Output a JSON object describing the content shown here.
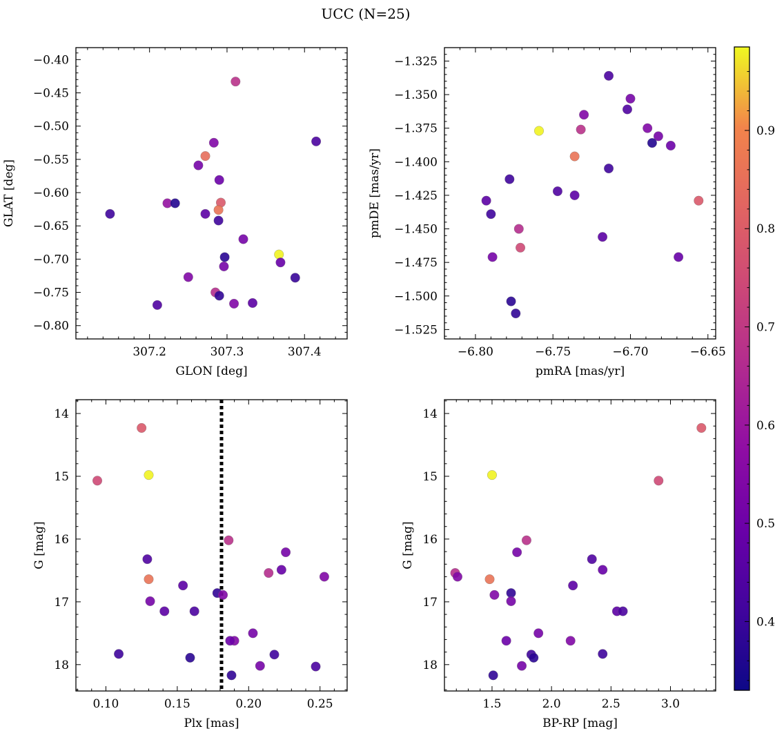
{
  "figure": {
    "title": "UCC (N=25)"
  },
  "colorbar": {
    "colormap": "plasma",
    "range": [
      0.33,
      0.985
    ],
    "ticks": [
      0.4,
      0.5,
      0.6,
      0.7,
      0.8,
      0.9
    ],
    "tick_labels": [
      "0.4",
      "0.5",
      "0.6",
      "0.7",
      "0.8",
      "0.9"
    ]
  },
  "chart_data": [
    {
      "type": "scatter",
      "title": "",
      "xlabel": "GLON [deg]",
      "ylabel": "GLAT [deg]",
      "xlim": [
        307.105,
        307.455
      ],
      "ylim": [
        -0.82,
        -0.382
      ],
      "xticks": [
        307.2,
        307.3,
        307.4
      ],
      "xtick_labels": [
        "307.2",
        "307.3",
        "307.4"
      ],
      "yticks": [
        -0.8,
        -0.75,
        -0.7,
        -0.65,
        -0.6,
        -0.55,
        -0.5,
        -0.45,
        -0.4
      ],
      "ytick_labels": [
        "−0.80",
        "−0.75",
        "−0.70",
        "−0.65",
        "−0.60",
        "−0.55",
        "−0.50",
        "−0.45",
        "−0.40"
      ],
      "y_inverted": false,
      "grid": false,
      "points": [
        {
          "x": 307.311,
          "y": -0.433,
          "c": 0.64
        },
        {
          "x": 307.415,
          "y": -0.523,
          "c": 0.42
        },
        {
          "x": 307.283,
          "y": -0.525,
          "c": 0.52
        },
        {
          "x": 307.272,
          "y": -0.545,
          "c": 0.79
        },
        {
          "x": 307.263,
          "y": -0.559,
          "c": 0.5
        },
        {
          "x": 307.29,
          "y": -0.581,
          "c": 0.48
        },
        {
          "x": 307.223,
          "y": -0.616,
          "c": 0.56
        },
        {
          "x": 307.233,
          "y": -0.616,
          "c": 0.36
        },
        {
          "x": 307.292,
          "y": -0.615,
          "c": 0.74
        },
        {
          "x": 307.289,
          "y": -0.626,
          "c": 0.8
        },
        {
          "x": 307.149,
          "y": -0.632,
          "c": 0.4
        },
        {
          "x": 307.272,
          "y": -0.632,
          "c": 0.45
        },
        {
          "x": 307.289,
          "y": -0.642,
          "c": 0.4
        },
        {
          "x": 307.321,
          "y": -0.67,
          "c": 0.5
        },
        {
          "x": 307.367,
          "y": -0.693,
          "c": 0.98
        },
        {
          "x": 307.297,
          "y": -0.697,
          "c": 0.37
        },
        {
          "x": 307.369,
          "y": -0.705,
          "c": 0.47
        },
        {
          "x": 307.296,
          "y": -0.711,
          "c": 0.5
        },
        {
          "x": 307.388,
          "y": -0.728,
          "c": 0.39
        },
        {
          "x": 307.25,
          "y": -0.727,
          "c": 0.52
        },
        {
          "x": 307.285,
          "y": -0.75,
          "c": 0.63
        },
        {
          "x": 307.29,
          "y": -0.755,
          "c": 0.38
        },
        {
          "x": 307.333,
          "y": -0.766,
          "c": 0.45
        },
        {
          "x": 307.309,
          "y": -0.767,
          "c": 0.52
        },
        {
          "x": 307.21,
          "y": -0.769,
          "c": 0.43
        }
      ]
    },
    {
      "type": "scatter",
      "title": "",
      "xlabel": "pmRA [mas/yr]",
      "ylabel": "pmDE [mas/yr]",
      "xlim": [
        -6.82,
        -6.645
      ],
      "ylim": [
        -1.532,
        -1.315
      ],
      "xticks": [
        -6.8,
        -6.75,
        -6.7,
        -6.65
      ],
      "xtick_labels": [
        "−6.80",
        "−6.75",
        "−6.70",
        "−6.65"
      ],
      "yticks": [
        -1.525,
        -1.5,
        -1.475,
        -1.45,
        -1.425,
        -1.4,
        -1.375,
        -1.35,
        -1.325
      ],
      "ytick_labels": [
        "−1.525",
        "−1.500",
        "−1.475",
        "−1.450",
        "−1.425",
        "−1.400",
        "−1.375",
        "−1.350",
        "−1.325"
      ],
      "y_inverted": false,
      "grid": false,
      "points": [
        {
          "x": -6.714,
          "y": -1.336,
          "c": 0.42
        },
        {
          "x": -6.7,
          "y": -1.353,
          "c": 0.5
        },
        {
          "x": -6.702,
          "y": -1.361,
          "c": 0.43
        },
        {
          "x": -6.73,
          "y": -1.365,
          "c": 0.52
        },
        {
          "x": -6.732,
          "y": -1.376,
          "c": 0.64
        },
        {
          "x": -6.759,
          "y": -1.377,
          "c": 0.98
        },
        {
          "x": -6.689,
          "y": -1.375,
          "c": 0.52
        },
        {
          "x": -6.682,
          "y": -1.381,
          "c": 0.5
        },
        {
          "x": -6.686,
          "y": -1.386,
          "c": 0.36
        },
        {
          "x": -6.674,
          "y": -1.388,
          "c": 0.48
        },
        {
          "x": -6.736,
          "y": -1.396,
          "c": 0.8
        },
        {
          "x": -6.714,
          "y": -1.405,
          "c": 0.4
        },
        {
          "x": -6.778,
          "y": -1.413,
          "c": 0.4
        },
        {
          "x": -6.747,
          "y": -1.422,
          "c": 0.43
        },
        {
          "x": -6.736,
          "y": -1.425,
          "c": 0.45
        },
        {
          "x": -6.656,
          "y": -1.429,
          "c": 0.74
        },
        {
          "x": -6.793,
          "y": -1.429,
          "c": 0.45
        },
        {
          "x": -6.79,
          "y": -1.439,
          "c": 0.4
        },
        {
          "x": -6.772,
          "y": -1.45,
          "c": 0.63
        },
        {
          "x": -6.718,
          "y": -1.456,
          "c": 0.45
        },
        {
          "x": -6.771,
          "y": -1.464,
          "c": 0.7
        },
        {
          "x": -6.789,
          "y": -1.471,
          "c": 0.5
        },
        {
          "x": -6.669,
          "y": -1.471,
          "c": 0.47
        },
        {
          "x": -6.777,
          "y": -1.504,
          "c": 0.37
        },
        {
          "x": -6.774,
          "y": -1.513,
          "c": 0.38
        }
      ]
    },
    {
      "type": "scatter",
      "title": "",
      "xlabel": "Plx [mas]",
      "ylabel": "G [mag]",
      "xlim": [
        0.079,
        0.269
      ],
      "ylim": [
        18.42,
        13.78
      ],
      "xticks": [
        0.1,
        0.15,
        0.2,
        0.25
      ],
      "xtick_labels": [
        "0.10",
        "0.15",
        "0.20",
        "0.25"
      ],
      "yticks": [
        14,
        15,
        16,
        17,
        18
      ],
      "ytick_labels": [
        "14",
        "15",
        "16",
        "17",
        "18"
      ],
      "y_inverted": true,
      "grid": false,
      "vline": {
        "x": 0.181,
        "style": "dotted",
        "color": "#000000"
      },
      "points": [
        {
          "x": 0.125,
          "y": 14.23,
          "c": 0.74
        },
        {
          "x": 0.13,
          "y": 14.98,
          "c": 0.98
        },
        {
          "x": 0.094,
          "y": 15.07,
          "c": 0.7
        },
        {
          "x": 0.186,
          "y": 16.02,
          "c": 0.64
        },
        {
          "x": 0.226,
          "y": 16.21,
          "c": 0.5
        },
        {
          "x": 0.129,
          "y": 16.32,
          "c": 0.43
        },
        {
          "x": 0.223,
          "y": 16.49,
          "c": 0.47
        },
        {
          "x": 0.214,
          "y": 16.54,
          "c": 0.63
        },
        {
          "x": 0.253,
          "y": 16.6,
          "c": 0.52
        },
        {
          "x": 0.13,
          "y": 16.64,
          "c": 0.8
        },
        {
          "x": 0.154,
          "y": 16.74,
          "c": 0.45
        },
        {
          "x": 0.178,
          "y": 16.86,
          "c": 0.38
        },
        {
          "x": 0.182,
          "y": 16.89,
          "c": 0.52
        },
        {
          "x": 0.131,
          "y": 16.99,
          "c": 0.5
        },
        {
          "x": 0.141,
          "y": 17.15,
          "c": 0.45
        },
        {
          "x": 0.162,
          "y": 17.15,
          "c": 0.42
        },
        {
          "x": 0.203,
          "y": 17.5,
          "c": 0.5
        },
        {
          "x": 0.19,
          "y": 17.62,
          "c": 0.52
        },
        {
          "x": 0.187,
          "y": 17.62,
          "c": 0.48
        },
        {
          "x": 0.109,
          "y": 17.83,
          "c": 0.4
        },
        {
          "x": 0.218,
          "y": 17.84,
          "c": 0.4
        },
        {
          "x": 0.159,
          "y": 17.89,
          "c": 0.37
        },
        {
          "x": 0.208,
          "y": 18.02,
          "c": 0.5
        },
        {
          "x": 0.247,
          "y": 18.03,
          "c": 0.42
        },
        {
          "x": 0.188,
          "y": 18.17,
          "c": 0.38
        }
      ]
    },
    {
      "type": "scatter",
      "title": "",
      "xlabel": "BP-RP [mag]",
      "ylabel": "G [mag]",
      "xlim": [
        1.1,
        3.38
      ],
      "ylim": [
        18.42,
        13.78
      ],
      "xticks": [
        1.5,
        2.0,
        2.5,
        3.0
      ],
      "xtick_labels": [
        "1.5",
        "2.0",
        "2.5",
        "3.0"
      ],
      "yticks": [
        14,
        15,
        16,
        17,
        18
      ],
      "ytick_labels": [
        "14",
        "15",
        "16",
        "17",
        "18"
      ],
      "y_inverted": true,
      "grid": false,
      "points": [
        {
          "x": 3.26,
          "y": 14.23,
          "c": 0.74
        },
        {
          "x": 1.5,
          "y": 14.98,
          "c": 0.98
        },
        {
          "x": 2.9,
          "y": 15.07,
          "c": 0.7
        },
        {
          "x": 1.79,
          "y": 16.02,
          "c": 0.64
        },
        {
          "x": 1.71,
          "y": 16.21,
          "c": 0.5
        },
        {
          "x": 2.34,
          "y": 16.32,
          "c": 0.43
        },
        {
          "x": 2.43,
          "y": 16.49,
          "c": 0.47
        },
        {
          "x": 1.19,
          "y": 16.54,
          "c": 0.63
        },
        {
          "x": 1.21,
          "y": 16.6,
          "c": 0.52
        },
        {
          "x": 1.48,
          "y": 16.64,
          "c": 0.8
        },
        {
          "x": 2.18,
          "y": 16.74,
          "c": 0.45
        },
        {
          "x": 1.66,
          "y": 16.86,
          "c": 0.38
        },
        {
          "x": 1.52,
          "y": 16.89,
          "c": 0.52
        },
        {
          "x": 1.66,
          "y": 16.99,
          "c": 0.5
        },
        {
          "x": 2.55,
          "y": 17.15,
          "c": 0.45
        },
        {
          "x": 2.6,
          "y": 17.15,
          "c": 0.42
        },
        {
          "x": 1.89,
          "y": 17.5,
          "c": 0.5
        },
        {
          "x": 2.16,
          "y": 17.62,
          "c": 0.52
        },
        {
          "x": 1.62,
          "y": 17.62,
          "c": 0.48
        },
        {
          "x": 2.43,
          "y": 17.83,
          "c": 0.4
        },
        {
          "x": 1.83,
          "y": 17.84,
          "c": 0.4
        },
        {
          "x": 1.85,
          "y": 17.89,
          "c": 0.37
        },
        {
          "x": 1.75,
          "y": 18.02,
          "c": 0.5
        },
        {
          "x": 1.51,
          "y": 18.17,
          "c": 0.38
        }
      ]
    }
  ]
}
